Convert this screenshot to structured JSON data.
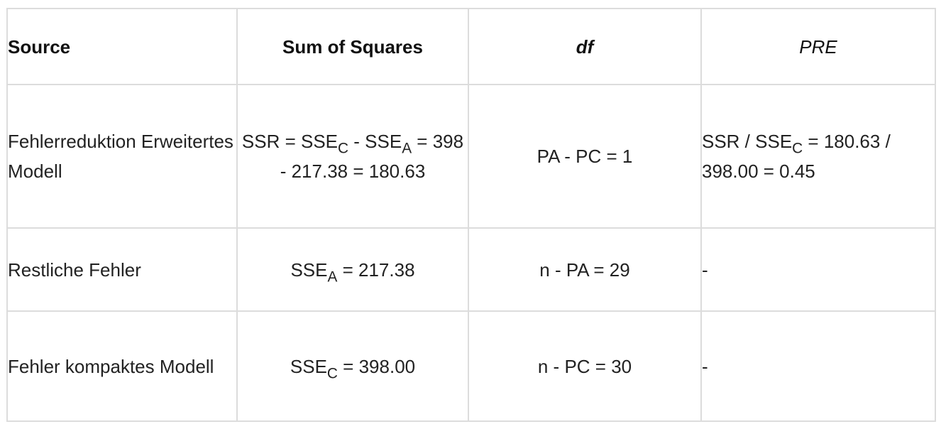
{
  "table": {
    "headers": {
      "source": "Source",
      "sum_of_squares": "Sum of Squares",
      "df": "df",
      "pre": "PRE"
    },
    "rows": [
      {
        "source": "Fehlerreduktion Erweitertes Modell",
        "ss": {
          "t1": "SSR = SSE",
          "s1": "C",
          "t2": " - SSE",
          "s2": "A",
          "t3": " = 398 - 217.38 = 180.63"
        },
        "df": "PA - PC = 1",
        "pre": {
          "t1": "SSR / SSE",
          "s1": "C",
          "t2": " = 180.63 / 398.00 = 0.45"
        }
      },
      {
        "source": "Restliche Fehler",
        "ss": {
          "t1": "SSE",
          "s1": "A",
          "t2": " = 217.38"
        },
        "df": "n - PA = 29",
        "pre": "-"
      },
      {
        "source": "Fehler kompaktes Modell",
        "ss": {
          "t1": "SSE",
          "s1": "C",
          "t2": " = 398.00"
        },
        "df": "n - PC = 30",
        "pre": "-"
      }
    ]
  },
  "colors": {
    "border": "#dcdcdc",
    "text": "#222222",
    "background": "#ffffff"
  }
}
